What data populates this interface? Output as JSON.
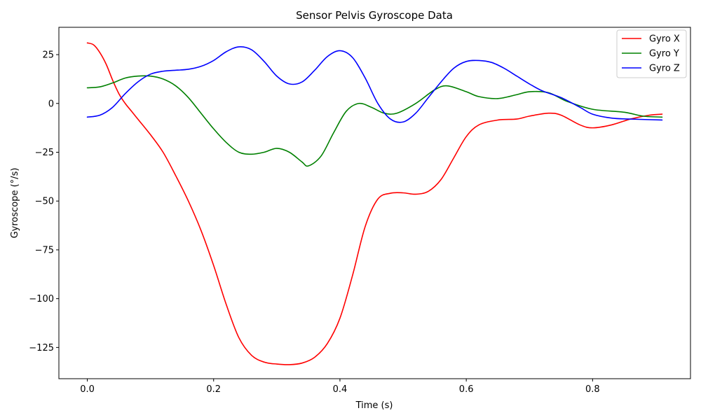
{
  "chart_data": {
    "type": "line",
    "title": "Sensor Pelvis Gyroscope Data",
    "xlabel": "Time (s)",
    "ylabel": "Gyroscope (°/s)",
    "xlim": [
      -0.045,
      0.955
    ],
    "ylim": [
      -141,
      39
    ],
    "xticks": [
      0.0,
      0.2,
      0.4,
      0.6,
      0.8
    ],
    "xtick_labels": [
      "0.0",
      "0.2",
      "0.4",
      "0.6",
      "0.8"
    ],
    "yticks": [
      25,
      0,
      -25,
      -50,
      -75,
      -100,
      -125
    ],
    "ytick_labels": [
      "25",
      "0",
      "−25",
      "−50",
      "−75",
      "−100",
      "−125"
    ],
    "grid": false,
    "legend_position": "top-right",
    "series": [
      {
        "name": "Gyro X",
        "color": "#ff0000",
        "x": [
          0.0,
          0.01,
          0.02,
          0.03,
          0.04,
          0.05,
          0.06,
          0.07,
          0.08,
          0.1,
          0.12,
          0.14,
          0.16,
          0.18,
          0.2,
          0.22,
          0.24,
          0.26,
          0.28,
          0.3,
          0.32,
          0.34,
          0.36,
          0.38,
          0.4,
          0.42,
          0.44,
          0.46,
          0.48,
          0.5,
          0.52,
          0.54,
          0.56,
          0.58,
          0.6,
          0.62,
          0.65,
          0.68,
          0.7,
          0.73,
          0.75,
          0.78,
          0.8,
          0.83,
          0.86,
          0.89,
          0.91
        ],
        "values": [
          31,
          30,
          26,
          20,
          12,
          5,
          0,
          -4,
          -8,
          -16,
          -25,
          -37,
          -50,
          -65,
          -83,
          -103,
          -120,
          -129,
          -132.5,
          -133.5,
          -133.8,
          -133,
          -130,
          -123,
          -110,
          -88,
          -63,
          -49,
          -46,
          -45.8,
          -46.5,
          -45,
          -39,
          -28,
          -17,
          -11,
          -8.5,
          -8,
          -6.5,
          -5,
          -6,
          -11,
          -12.5,
          -11,
          -8,
          -6,
          -5.5
        ]
      },
      {
        "name": "Gyro Y",
        "color": "#008000",
        "x": [
          0.0,
          0.02,
          0.04,
          0.06,
          0.08,
          0.1,
          0.12,
          0.14,
          0.16,
          0.18,
          0.2,
          0.22,
          0.24,
          0.26,
          0.28,
          0.3,
          0.32,
          0.34,
          0.35,
          0.37,
          0.39,
          0.41,
          0.43,
          0.45,
          0.47,
          0.49,
          0.52,
          0.55,
          0.57,
          0.6,
          0.62,
          0.65,
          0.68,
          0.7,
          0.73,
          0.76,
          0.8,
          0.85,
          0.88,
          0.91
        ],
        "values": [
          8,
          8.5,
          10.5,
          13,
          14,
          14,
          12.5,
          9,
          3,
          -5,
          -13,
          -20,
          -25,
          -26,
          -25,
          -23,
          -25,
          -30,
          -32,
          -27,
          -15,
          -4,
          0,
          -2,
          -5,
          -5,
          0,
          7,
          9,
          6,
          3.5,
          2.5,
          4.5,
          6,
          5.5,
          1,
          -3,
          -4.5,
          -6.5,
          -7
        ]
      },
      {
        "name": "Gyro Z",
        "color": "#0000ff",
        "x": [
          0.0,
          0.02,
          0.04,
          0.06,
          0.08,
          0.1,
          0.12,
          0.14,
          0.16,
          0.18,
          0.2,
          0.22,
          0.24,
          0.26,
          0.28,
          0.3,
          0.32,
          0.34,
          0.36,
          0.38,
          0.4,
          0.42,
          0.44,
          0.46,
          0.48,
          0.5,
          0.52,
          0.54,
          0.56,
          0.58,
          0.6,
          0.62,
          0.64,
          0.66,
          0.68,
          0.7,
          0.72,
          0.75,
          0.78,
          0.8,
          0.83,
          0.86,
          0.91
        ],
        "values": [
          -7,
          -6,
          -2,
          5,
          11,
          15,
          16.5,
          17,
          17.5,
          19,
          22,
          26.5,
          29,
          27.5,
          21.5,
          14,
          10,
          11,
          17,
          24,
          27,
          23.5,
          13,
          0,
          -8,
          -9.5,
          -5,
          3,
          11,
          18,
          21.5,
          22,
          21,
          18,
          14,
          10,
          6.5,
          3,
          -2,
          -5.5,
          -7.5,
          -8,
          -8.5
        ]
      }
    ]
  }
}
